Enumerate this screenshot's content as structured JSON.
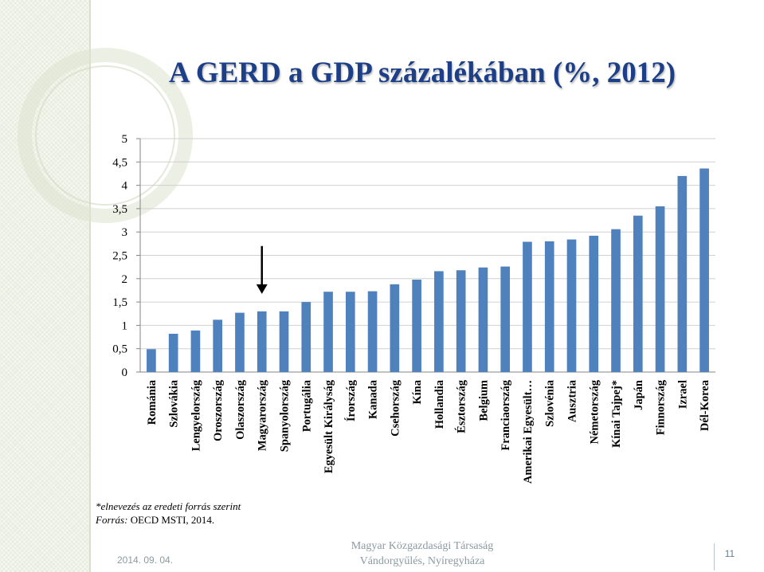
{
  "title": "A GERD a GDP százalékában (%, 2012)",
  "footnote": "*elnevezés az eredeti forrás szerint",
  "source_label": "Forrás:",
  "source_text": "OECD MSTI, 2014.",
  "date": "2014. 09. 04.",
  "footer_org": "Magyar Közgazdasági Társaság",
  "footer_event": "Vándorgyűlés, Nyíregyháza",
  "page_number": "11",
  "colors": {
    "bar": "#4f81bd",
    "title": "#1c3f87",
    "arrow": "#000000"
  },
  "chart_data": {
    "type": "bar",
    "title": "A GERD a GDP százalékában (%, 2012)",
    "xlabel": "",
    "ylabel": "",
    "ylim": [
      0,
      5
    ],
    "y_ticks": [
      "0",
      "0,5",
      "1",
      "1,5",
      "2",
      "2,5",
      "3",
      "3,5",
      "4",
      "4,5",
      "5"
    ],
    "y_tick_values": [
      0,
      0.5,
      1,
      1.5,
      2,
      2.5,
      3,
      3.5,
      4,
      4.5,
      5
    ],
    "grid": true,
    "legend": "none",
    "highlighted_category": "Magyarország",
    "categories": [
      "Románia",
      "Szlovákia",
      "Lengyelország",
      "Oroszország",
      "Olaszország",
      "Magyarország",
      "Spanyolország",
      "Portugália",
      "Egyesült Királyság",
      "Írország",
      "Kanada",
      "Csehország",
      "Kína",
      "Hollandia",
      "Észtország",
      "Belgium",
      "Franciaország",
      "Amerikai Egyesült…",
      "Szlovénia",
      "Ausztria",
      "Németország",
      "Kínai Tajpej*",
      "Japán",
      "Finnország",
      "Izrael",
      "Dél-Korea"
    ],
    "values": [
      0.49,
      0.82,
      0.89,
      1.12,
      1.27,
      1.3,
      1.3,
      1.5,
      1.72,
      1.72,
      1.73,
      1.88,
      1.98,
      2.16,
      2.18,
      2.24,
      2.26,
      2.79,
      2.8,
      2.84,
      2.92,
      3.06,
      3.35,
      3.55,
      4.2,
      4.36
    ]
  }
}
